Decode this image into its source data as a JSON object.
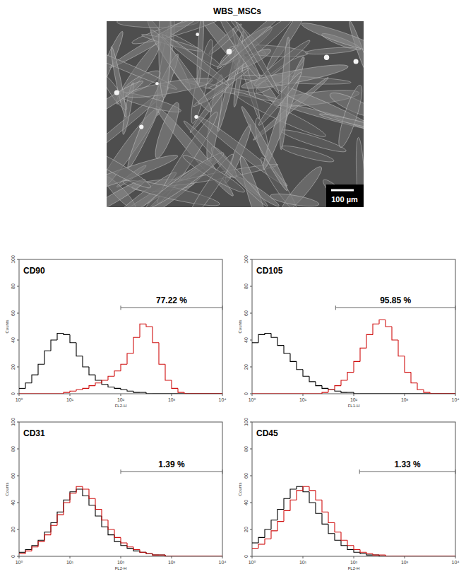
{
  "image": {
    "title": "WBS_MSCs",
    "scale_bar": "100 µm"
  },
  "chart_data": [
    {
      "type": "histogram",
      "title": "CD90",
      "x_label": "FL2-H",
      "y_label": "Counts",
      "log": "x",
      "bins": [
        1,
        1.334,
        1.778,
        2.371,
        3.162,
        4.217,
        5.623,
        7.499,
        10,
        13.34,
        17.78,
        23.71,
        31.62,
        42.17,
        56.23,
        74.99,
        100,
        133.4,
        177.8,
        237.1,
        316.2,
        421.7,
        562.3,
        749.9,
        1000,
        1334,
        1778,
        2371,
        3162,
        4217,
        5623,
        7499,
        10000
      ],
      "series": [
        {
          "color": "#000000",
          "values": [
            4,
            8,
            14,
            22,
            32,
            40,
            45,
            44,
            38,
            28,
            20,
            14,
            10,
            7,
            5,
            4,
            3,
            2,
            1,
            1,
            0,
            0,
            0,
            0,
            0,
            0,
            0,
            0,
            0,
            0,
            0,
            0
          ]
        },
        {
          "color": "#d01010",
          "values": [
            0,
            0,
            0,
            0,
            0,
            0,
            0,
            1,
            2,
            3,
            4,
            6,
            8,
            10,
            13,
            17,
            22,
            30,
            42,
            52,
            50,
            38,
            22,
            10,
            4,
            1,
            0,
            0,
            0,
            0,
            0,
            0
          ]
        }
      ],
      "xlim": [
        1,
        10000
      ],
      "xticks": [
        {
          "value": 1,
          "label": "10⁰"
        },
        {
          "value": 10,
          "label": "10¹"
        },
        {
          "value": 100,
          "label": "10²"
        },
        {
          "value": 1000,
          "label": "10³"
        },
        {
          "value": 10000,
          "label": "10⁴"
        }
      ],
      "ylim": [
        0,
        100
      ],
      "yticks": [
        0,
        20,
        40,
        60,
        80,
        100
      ],
      "gate": {
        "label": "77.22 %",
        "xlim": [
          100,
          10000
        ],
        "y": 64
      }
    },
    {
      "type": "histogram",
      "title": "CD105",
      "x_label": "FL1-H",
      "y_label": "Counts",
      "log": "x",
      "bins": [
        1,
        1.334,
        1.778,
        2.371,
        3.162,
        4.217,
        5.623,
        7.499,
        10,
        13.34,
        17.78,
        23.71,
        31.62,
        42.17,
        56.23,
        74.99,
        100,
        133.4,
        177.8,
        237.1,
        316.2,
        421.7,
        562.3,
        749.9,
        1000,
        1334,
        1778,
        2371,
        3162,
        4217,
        5623,
        7499,
        10000
      ],
      "series": [
        {
          "color": "#000000",
          "values": [
            38,
            44,
            45,
            42,
            36,
            30,
            24,
            18,
            13,
            9,
            6,
            4,
            3,
            2,
            1,
            1,
            0,
            0,
            0,
            0,
            0,
            0,
            0,
            0,
            0,
            0,
            0,
            0,
            0,
            0,
            0,
            0
          ]
        },
        {
          "color": "#d01010",
          "values": [
            0,
            0,
            0,
            0,
            0,
            0,
            0,
            0,
            0,
            0,
            0,
            1,
            3,
            6,
            10,
            16,
            24,
            34,
            44,
            52,
            55,
            50,
            40,
            28,
            16,
            8,
            3,
            1,
            0,
            0,
            0,
            0
          ]
        }
      ],
      "xlim": [
        1,
        10000
      ],
      "xticks": [
        {
          "value": 1,
          "label": "10⁰"
        },
        {
          "value": 10,
          "label": "10¹"
        },
        {
          "value": 100,
          "label": "10²"
        },
        {
          "value": 1000,
          "label": "10³"
        },
        {
          "value": 10000,
          "label": "10⁴"
        }
      ],
      "ylim": [
        0,
        100
      ],
      "yticks": [
        0,
        20,
        40,
        60,
        80,
        100
      ],
      "gate": {
        "label": "95.85 %",
        "xlim": [
          44,
          10000
        ],
        "y": 64
      }
    },
    {
      "type": "histogram",
      "title": "CD31",
      "x_label": "FL2-H",
      "y_label": "Counts",
      "log": "x",
      "bins": [
        1,
        1.334,
        1.778,
        2.371,
        3.162,
        4.217,
        5.623,
        7.499,
        10,
        13.34,
        17.78,
        23.71,
        31.62,
        42.17,
        56.23,
        74.99,
        100,
        133.4,
        177.8,
        237.1,
        316.2,
        421.7,
        562.3,
        749.9,
        1000,
        1334,
        1778,
        2371,
        3162,
        4217,
        5623,
        7499,
        10000
      ],
      "series": [
        {
          "color": "#000000",
          "values": [
            3,
            5,
            8,
            12,
            18,
            25,
            33,
            42,
            48,
            50,
            45,
            38,
            30,
            22,
            16,
            11,
            8,
            6,
            4,
            3,
            2,
            1,
            1,
            0,
            0,
            0,
            0,
            0,
            0,
            0,
            0,
            0
          ]
        },
        {
          "color": "#d01010",
          "values": [
            2,
            4,
            7,
            11,
            16,
            23,
            31,
            40,
            47,
            52,
            50,
            43,
            35,
            27,
            20,
            14,
            10,
            7,
            5,
            3,
            2,
            1,
            1,
            0,
            0,
            0,
            0,
            0,
            0,
            0,
            0,
            0
          ]
        }
      ],
      "xlim": [
        1,
        10000
      ],
      "xticks": [
        {
          "value": 1,
          "label": "10⁰"
        },
        {
          "value": 10,
          "label": "10¹"
        },
        {
          "value": 100,
          "label": "10²"
        },
        {
          "value": 1000,
          "label": "10³"
        },
        {
          "value": 10000,
          "label": "10⁴"
        }
      ],
      "ylim": [
        0,
        100
      ],
      "yticks": [
        0,
        20,
        40,
        60,
        80,
        100
      ],
      "gate": {
        "label": "1.39 %",
        "xlim": [
          100,
          10000
        ],
        "y": 63
      }
    },
    {
      "type": "histogram",
      "title": "CD45",
      "x_label": "FL2-H",
      "y_label": "Counts",
      "log": "x",
      "bins": [
        1,
        1.334,
        1.778,
        2.371,
        3.162,
        4.217,
        5.623,
        7.499,
        10,
        13.34,
        17.78,
        23.71,
        31.62,
        42.17,
        56.23,
        74.99,
        100,
        133.4,
        177.8,
        237.1,
        316.2,
        421.7,
        562.3,
        749.9,
        1000,
        1334,
        1778,
        2371,
        3162,
        4217,
        5623,
        7499,
        10000
      ],
      "series": [
        {
          "color": "#000000",
          "values": [
            10,
            14,
            20,
            27,
            35,
            43,
            50,
            52,
            48,
            40,
            32,
            24,
            17,
            12,
            8,
            5,
            3,
            2,
            1,
            1,
            0,
            0,
            0,
            0,
            0,
            0,
            0,
            0,
            0,
            0,
            0,
            0
          ]
        },
        {
          "color": "#d01010",
          "values": [
            6,
            9,
            13,
            19,
            26,
            34,
            42,
            49,
            52,
            49,
            42,
            33,
            25,
            18,
            12,
            8,
            5,
            3,
            2,
            1,
            1,
            0,
            0,
            0,
            0,
            0,
            0,
            0,
            0,
            0,
            0,
            0
          ]
        }
      ],
      "xlim": [
        1,
        10000
      ],
      "xticks": [
        {
          "value": 1,
          "label": "10⁰"
        },
        {
          "value": 10,
          "label": "10¹"
        },
        {
          "value": 100,
          "label": "10²"
        },
        {
          "value": 1000,
          "label": "10³"
        },
        {
          "value": 10000,
          "label": "10⁴"
        }
      ],
      "ylim": [
        0,
        100
      ],
      "yticks": [
        0,
        20,
        40,
        60,
        80,
        100
      ],
      "gate": {
        "label": "1.33 %",
        "xlim": [
          130,
          10000
        ],
        "y": 63
      }
    }
  ]
}
